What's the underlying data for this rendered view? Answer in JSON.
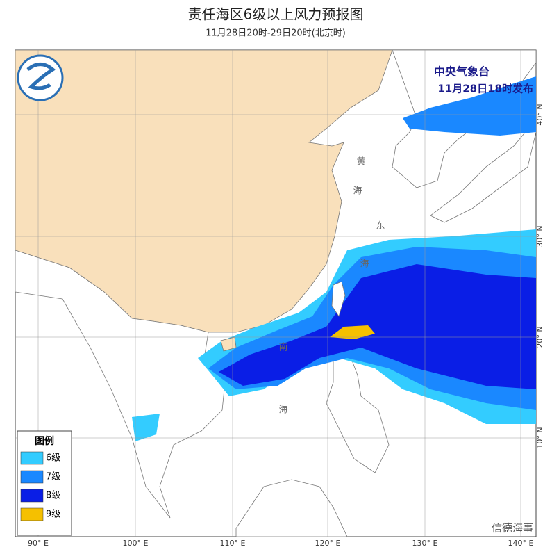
{
  "header": {
    "title": "责任海区6级以上风力预报图",
    "subtitle": "11月28日20时-29日20时(北京时)"
  },
  "issuer": {
    "name": "中央气象台",
    "time": "11月28日18时发布"
  },
  "legend": {
    "title": "图例",
    "items": [
      {
        "label": "6级",
        "color": "#33ccff"
      },
      {
        "label": "7级",
        "color": "#1a88ff"
      },
      {
        "label": "8级",
        "color": "#0a1ee6"
      },
      {
        "label": "9级",
        "color": "#f5c000"
      }
    ]
  },
  "axes": {
    "longitude": [
      "90° E",
      "100° E",
      "110° E",
      "120° E",
      "130° E",
      "140° E"
    ],
    "latitude": [
      "40° N",
      "30° N",
      "20° N",
      "10° N"
    ]
  },
  "sea_labels": [
    "黄",
    "海",
    "东",
    "海",
    "南",
    "海"
  ],
  "watermark": "信德海事"
}
